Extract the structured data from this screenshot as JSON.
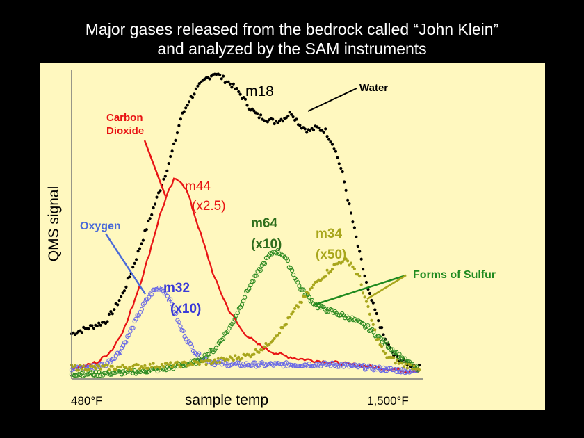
{
  "header": {
    "title_line1": "Major gases released from the bedrock called “John Klein”",
    "title_line2": "and analyzed by the SAM instruments"
  },
  "chart_data": {
    "type": "line",
    "ylabel": "QMS signal",
    "xlabel": "sample temp",
    "x_ticks": [
      "480°F",
      "1,500°F"
    ],
    "x_range_F": [
      480,
      1500
    ],
    "y_range": [
      0,
      100
    ],
    "grid": false,
    "legend": "inline annotations",
    "series": [
      {
        "name": "m18",
        "style": "dots",
        "color": "#000000",
        "x": [
          480,
          505,
          530,
          555,
          580,
          605,
          630,
          655,
          680,
          705,
          730,
          755,
          780,
          800,
          825,
          850,
          875,
          900,
          925,
          950,
          975,
          1000,
          1025,
          1050,
          1075,
          1100,
          1125,
          1150,
          1175,
          1200,
          1225,
          1250,
          1275,
          1300,
          1325,
          1350,
          1375,
          1400,
          1425,
          1450,
          1475,
          1500
        ],
        "y": [
          14,
          15,
          16,
          17,
          18,
          22,
          27,
          34,
          42,
          50,
          58,
          66,
          75,
          84,
          90,
          94,
          97,
          99,
          97,
          95,
          92,
          88,
          85,
          84,
          83,
          84,
          86,
          82,
          80,
          81,
          80,
          75,
          66,
          53,
          40,
          28,
          20,
          12,
          7,
          5,
          4,
          3
        ]
      },
      {
        "name": "m44 (x2.5)",
        "style": "line",
        "color": "#e81414",
        "x": [
          480,
          520,
          560,
          600,
          640,
          680,
          700,
          720,
          740,
          760,
          780,
          800,
          820,
          840,
          860,
          880,
          900,
          940,
          980,
          1020,
          1060,
          1100,
          1140,
          1180,
          1220,
          1260,
          1300,
          1340,
          1380,
          1420,
          1460,
          1500
        ],
        "y": [
          3,
          3.5,
          5,
          9,
          17,
          30,
          37,
          45,
          53,
          59,
          64,
          64,
          60,
          53,
          46,
          39,
          32,
          22,
          15,
          11,
          8.5,
          7,
          6,
          5.5,
          5,
          4.5,
          4,
          3.5,
          3,
          2.5,
          2,
          2
        ]
      },
      {
        "name": "m32 (x10)",
        "style": "open-circles",
        "color": "#6a6ae6",
        "x": [
          480,
          530,
          580,
          620,
          650,
          680,
          700,
          720,
          740,
          760,
          780,
          800,
          830,
          860,
          900,
          950,
          1000,
          1050,
          1100,
          1150,
          1200,
          1250,
          1300,
          1350,
          1400,
          1450,
          1500
        ],
        "y": [
          2.5,
          3,
          4,
          8,
          14,
          21,
          25,
          28,
          29,
          27,
          22,
          16,
          10,
          6,
          4.5,
          4,
          4,
          4,
          4,
          4,
          4,
          4,
          3.5,
          3,
          2.5,
          2,
          2
        ]
      },
      {
        "name": "m64 (x10)",
        "style": "open-circles",
        "color": "#2e8b22",
        "x": [
          480,
          550,
          650,
          750,
          850,
          900,
          950,
          1000,
          1050,
          1075,
          1100,
          1125,
          1150,
          1200,
          1250,
          1300,
          1350,
          1400,
          1450,
          1500
        ],
        "y": [
          1,
          1,
          1.5,
          2.5,
          5,
          9,
          17,
          29,
          38,
          41,
          40,
          35,
          29,
          23,
          21,
          19,
          16,
          11,
          6,
          2
        ]
      },
      {
        "name": "m34 (x50)",
        "style": "dots",
        "color": "#a8a61c",
        "x": [
          480,
          600,
          700,
          800,
          900,
          1000,
          1050,
          1100,
          1150,
          1200,
          1250,
          1275,
          1300,
          1325,
          1350,
          1375,
          1400,
          1450,
          1500
        ],
        "y": [
          3,
          3,
          3.5,
          4,
          5,
          7,
          10,
          16,
          24,
          31,
          36,
          38,
          37,
          32,
          22,
          13,
          7,
          4,
          3
        ]
      }
    ],
    "annotations": [
      {
        "text": "m18",
        "color": "#000000"
      },
      {
        "text": "Water",
        "color": "#000000"
      },
      {
        "text": "Carbon Dioxide",
        "color": "#e81414"
      },
      {
        "text": "m44",
        "color": "#e81414"
      },
      {
        "text": "(x2.5)",
        "color": "#e81414"
      },
      {
        "text": "Oxygen",
        "color": "#4a6ad8"
      },
      {
        "text": "m32",
        "color": "#3a3ad8"
      },
      {
        "text": "(x10)",
        "color": "#3a3ad8"
      },
      {
        "text": "m64",
        "color": "#2e6e1c"
      },
      {
        "text": "(x10)",
        "color": "#2e6e1c"
      },
      {
        "text": "m34",
        "color": "#a8a61c"
      },
      {
        "text": "(x50)",
        "color": "#a8a61c"
      },
      {
        "text": "Forms of Sulfur",
        "color": "#1f8a1f"
      }
    ]
  }
}
